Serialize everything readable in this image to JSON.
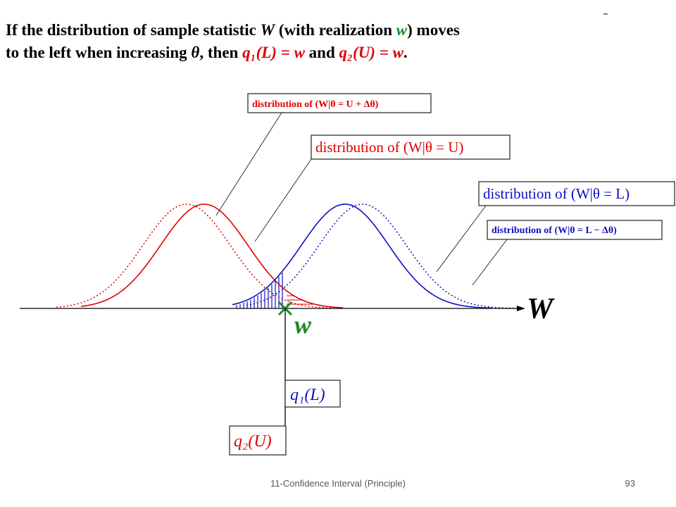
{
  "heading": {
    "lines": [
      [
        "If the distribution of sample statistic ",
        "W",
        " (with realization ",
        "w",
        ") moves"
      ],
      [
        "to the left when increasing ",
        "θ",
        ", then ",
        "q₁(L) = w",
        " and ",
        "q₂(U) = w",
        "."
      ]
    ]
  },
  "diagram": {
    "labels": [
      "distribution of (W|θ = U + Δθ)",
      "distribution of (W|θ = U)",
      "distribution of (W|θ = L)",
      "distribution of (W|θ = L − Δθ)"
    ],
    "axis_label": "W",
    "point_label": "w",
    "q1": "q₁(L)",
    "q2": "q₂(U)"
  },
  "footer": {
    "title": "11-Confidence Interval (Principle)",
    "page": "93"
  }
}
